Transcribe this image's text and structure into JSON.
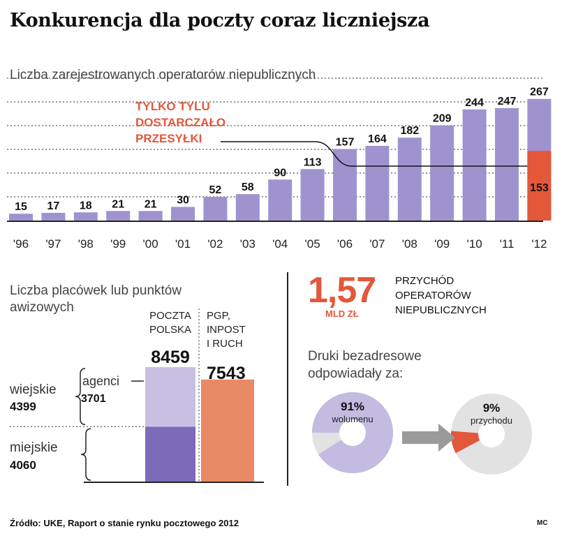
{
  "title": "Konkurencja dla poczty coraz liczniejsza",
  "chart_data": [
    {
      "type": "bar",
      "title": "Liczba zarejestrowanych operatorów niepublicznych",
      "categories": [
        "'96",
        "'97",
        "'98",
        "'99",
        "'00",
        "'01",
        "'02",
        "'03",
        "'04",
        "'05",
        "'06",
        "'07",
        "'08",
        "'09",
        "'10",
        "'11",
        "'12"
      ],
      "series": [
        {
          "name": "",
          "values": [
            15,
            17,
            18,
            21,
            21,
            30,
            52,
            58,
            90,
            113,
            157,
            164,
            182,
            209,
            244,
            247,
            267
          ]
        },
        {
          "name": "TYLKO TYLU DOSTARCZAŁO PRZESYŁKI",
          "values": [
            null,
            null,
            null,
            null,
            null,
            null,
            null,
            null,
            null,
            null,
            null,
            null,
            null,
            null,
            null,
            null,
            153
          ]
        }
      ],
      "value_labels": [
        "15",
        "17",
        "18",
        "21",
        "21",
        "30",
        "52",
        "58",
        "90",
        "113",
        "157",
        "164",
        "182",
        "209",
        "244",
        "247",
        "267"
      ],
      "annotation_lines": [
        "TYLKO TYLU",
        "DOSTARCZAŁO",
        "PRZESYŁKI"
      ],
      "annotation_value": "153",
      "ylim": [
        0,
        285
      ],
      "grid": true,
      "colors": {
        "bar": "#9f93cf",
        "highlight": "#e3573a",
        "grid": "#555555"
      }
    },
    {
      "type": "bar",
      "title": "Liczba placówek lub punktów awizowych",
      "categories": [
        "POCZTA POLSKA",
        "PGP, INPOST I RUCH"
      ],
      "cat_lines": [
        [
          "POCZTA",
          "POLSKA"
        ],
        [
          "PGP,",
          "INPOST",
          "I RUCH"
        ]
      ],
      "totals": [
        "8459",
        "7543"
      ],
      "stack": {
        "poczta": [
          {
            "name": "miejskie",
            "value": 4060,
            "label": "4060",
            "color": "#7b6bb8"
          },
          {
            "name": "wiejskie",
            "value": 4399,
            "label": "4399",
            "color": "#c8c0e3"
          }
        ],
        "agenci": {
          "name": "agenci",
          "value": 3701,
          "label": "3701",
          "color": "#b4a9dc"
        },
        "pgp": {
          "value": 7543,
          "color": "#e98a66"
        }
      },
      "ylim": [
        0,
        8459
      ]
    },
    {
      "type": "pie",
      "title": "Druki bezadresowe odpowiadały za:",
      "charts": [
        {
          "label": "wolumenu",
          "value": 91,
          "value_label": "91%",
          "color": "#c3bbe0",
          "rest_color": "#e2e2e2"
        },
        {
          "label": "przychodu",
          "value": 9,
          "value_label": "9%",
          "color": "#e3573a",
          "rest_color": "#e2e2e2"
        }
      ]
    }
  ],
  "revenue": {
    "value": "1,57",
    "unit": "MLD ZŁ",
    "lines": [
      "PRZYCHÓD",
      "OPERATORÓW",
      "NIEPUBLICZNYCH"
    ]
  },
  "footer": {
    "source": "Źródło: UKE, Raport o stanie rynku pocztowego 2012",
    "credit": "MC"
  }
}
